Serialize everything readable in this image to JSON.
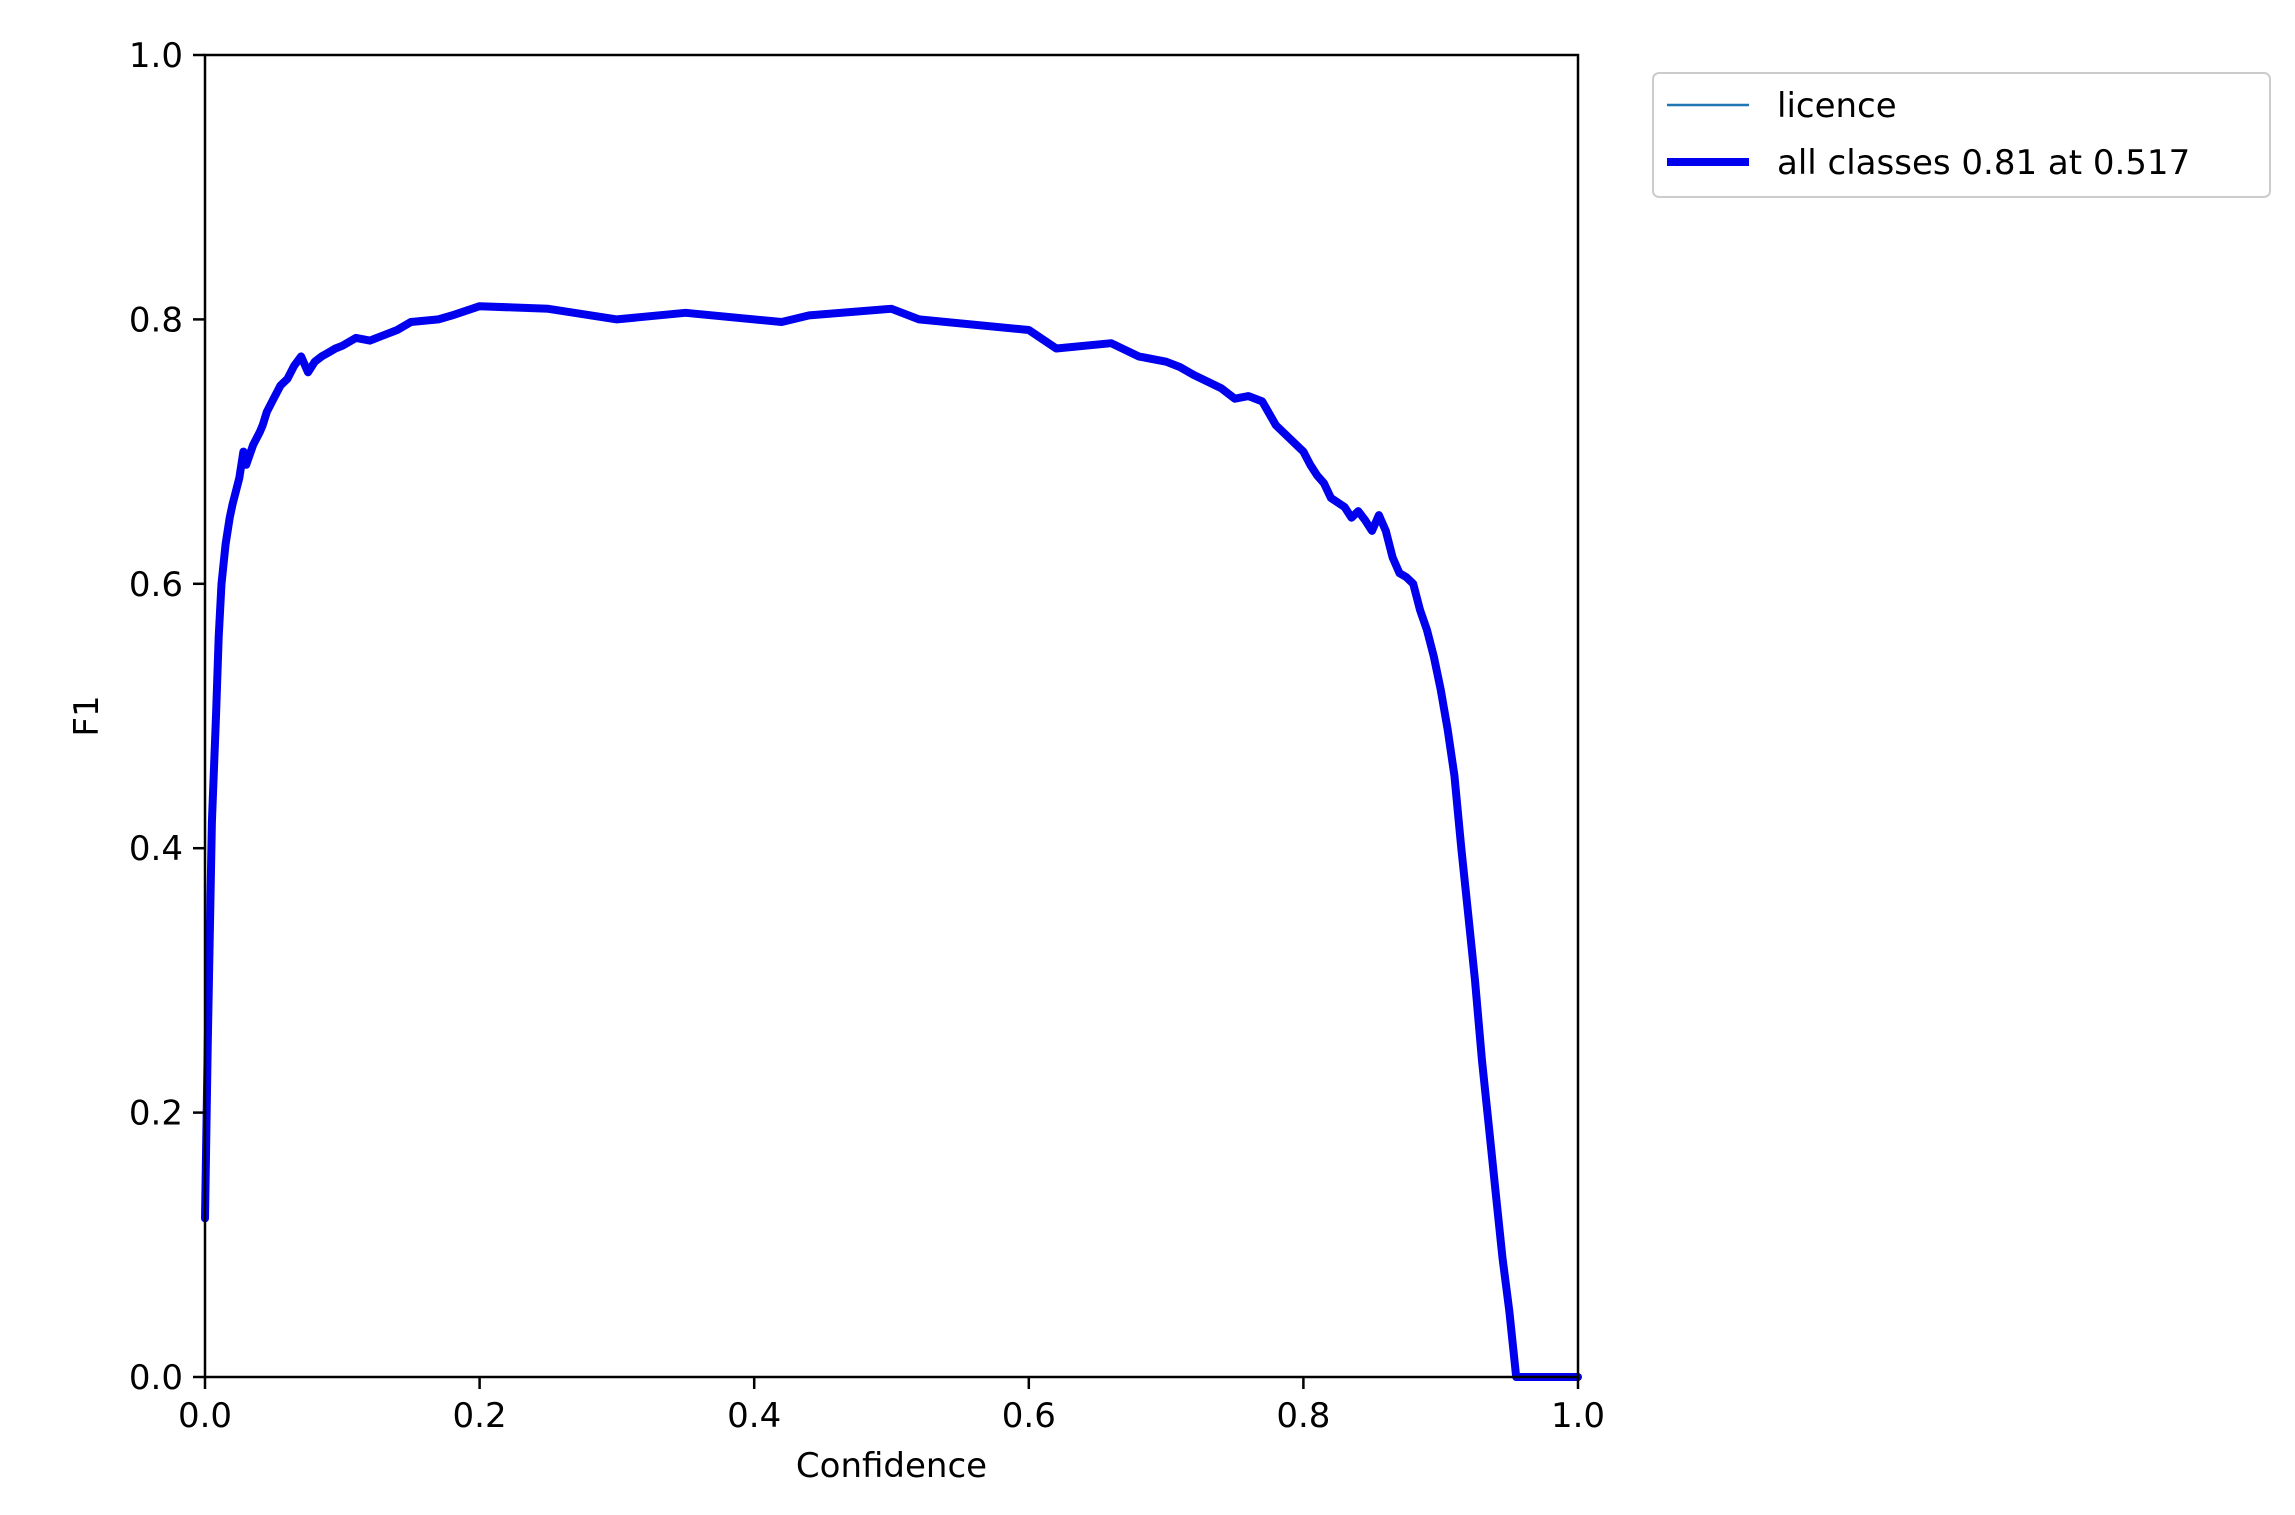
{
  "chart_data": {
    "type": "line",
    "xlabel": "Confidence",
    "ylabel": "F1",
    "xlim": [
      0.0,
      1.0
    ],
    "ylim": [
      0.0,
      1.0
    ],
    "xticks": [
      "0.0",
      "0.2",
      "0.4",
      "0.6",
      "0.8",
      "1.0"
    ],
    "yticks": [
      "0.0",
      "0.2",
      "0.4",
      "0.6",
      "0.8",
      "1.0"
    ],
    "grid": false,
    "legend_position": "outside-top-right",
    "series": [
      {
        "name": "licence",
        "color": "#1f77b4",
        "x": [
          0.0,
          0.002,
          0.005,
          0.008,
          0.01,
          0.012,
          0.015,
          0.018,
          0.02,
          0.025,
          0.028,
          0.03,
          0.035,
          0.04,
          0.042,
          0.045,
          0.05,
          0.055,
          0.06,
          0.065,
          0.07,
          0.075,
          0.08,
          0.085,
          0.09,
          0.095,
          0.1,
          0.11,
          0.12,
          0.13,
          0.14,
          0.15,
          0.17,
          0.18,
          0.2,
          0.25,
          0.3,
          0.35,
          0.42,
          0.44,
          0.5,
          0.52,
          0.6,
          0.62,
          0.66,
          0.68,
          0.7,
          0.71,
          0.72,
          0.74,
          0.75,
          0.76,
          0.77,
          0.78,
          0.8,
          0.805,
          0.81,
          0.815,
          0.82,
          0.83,
          0.835,
          0.84,
          0.845,
          0.85,
          0.855,
          0.86,
          0.865,
          0.87,
          0.875,
          0.88,
          0.885,
          0.89,
          0.895,
          0.9,
          0.905,
          0.91,
          0.915,
          0.92,
          0.925,
          0.93,
          0.935,
          0.94,
          0.945,
          0.95,
          0.955,
          0.96,
          1.0
        ],
        "y": [
          0.12,
          0.25,
          0.42,
          0.5,
          0.56,
          0.6,
          0.63,
          0.65,
          0.66,
          0.68,
          0.7,
          0.69,
          0.705,
          0.715,
          0.72,
          0.73,
          0.74,
          0.75,
          0.755,
          0.765,
          0.772,
          0.76,
          0.768,
          0.772,
          0.775,
          0.778,
          0.78,
          0.786,
          0.784,
          0.788,
          0.792,
          0.798,
          0.8,
          0.803,
          0.81,
          0.808,
          0.8,
          0.805,
          0.798,
          0.803,
          0.808,
          0.8,
          0.792,
          0.778,
          0.782,
          0.772,
          0.768,
          0.764,
          0.758,
          0.748,
          0.74,
          0.742,
          0.738,
          0.72,
          0.7,
          0.69,
          0.682,
          0.676,
          0.665,
          0.658,
          0.65,
          0.655,
          0.648,
          0.64,
          0.652,
          0.64,
          0.62,
          0.608,
          0.605,
          0.6,
          0.58,
          0.565,
          0.545,
          0.52,
          0.49,
          0.455,
          0.4,
          0.35,
          0.3,
          0.24,
          0.19,
          0.14,
          0.09,
          0.05,
          0.0,
          0.0,
          0.0
        ]
      },
      {
        "name": "all classes 0.81 at 0.517",
        "color": "#0000ee",
        "x": [
          0.0,
          0.002,
          0.005,
          0.008,
          0.01,
          0.012,
          0.015,
          0.018,
          0.02,
          0.025,
          0.028,
          0.03,
          0.035,
          0.04,
          0.042,
          0.045,
          0.05,
          0.055,
          0.06,
          0.065,
          0.07,
          0.075,
          0.08,
          0.085,
          0.09,
          0.095,
          0.1,
          0.11,
          0.12,
          0.13,
          0.14,
          0.15,
          0.17,
          0.18,
          0.2,
          0.25,
          0.3,
          0.35,
          0.42,
          0.44,
          0.5,
          0.52,
          0.6,
          0.62,
          0.66,
          0.68,
          0.7,
          0.71,
          0.72,
          0.74,
          0.75,
          0.76,
          0.77,
          0.78,
          0.8,
          0.805,
          0.81,
          0.815,
          0.82,
          0.83,
          0.835,
          0.84,
          0.845,
          0.85,
          0.855,
          0.86,
          0.865,
          0.87,
          0.875,
          0.88,
          0.885,
          0.89,
          0.895,
          0.9,
          0.905,
          0.91,
          0.915,
          0.92,
          0.925,
          0.93,
          0.935,
          0.94,
          0.945,
          0.95,
          0.955,
          0.96,
          1.0
        ],
        "y": [
          0.12,
          0.25,
          0.42,
          0.5,
          0.56,
          0.6,
          0.63,
          0.65,
          0.66,
          0.68,
          0.7,
          0.69,
          0.705,
          0.715,
          0.72,
          0.73,
          0.74,
          0.75,
          0.755,
          0.765,
          0.772,
          0.76,
          0.768,
          0.772,
          0.775,
          0.778,
          0.78,
          0.786,
          0.784,
          0.788,
          0.792,
          0.798,
          0.8,
          0.803,
          0.81,
          0.808,
          0.8,
          0.805,
          0.798,
          0.803,
          0.808,
          0.8,
          0.792,
          0.778,
          0.782,
          0.772,
          0.768,
          0.764,
          0.758,
          0.748,
          0.74,
          0.742,
          0.738,
          0.72,
          0.7,
          0.69,
          0.682,
          0.676,
          0.665,
          0.658,
          0.65,
          0.655,
          0.648,
          0.64,
          0.652,
          0.64,
          0.62,
          0.608,
          0.605,
          0.6,
          0.58,
          0.565,
          0.545,
          0.52,
          0.49,
          0.455,
          0.4,
          0.35,
          0.3,
          0.24,
          0.19,
          0.14,
          0.09,
          0.05,
          0.0,
          0.0,
          0.0
        ]
      }
    ]
  }
}
